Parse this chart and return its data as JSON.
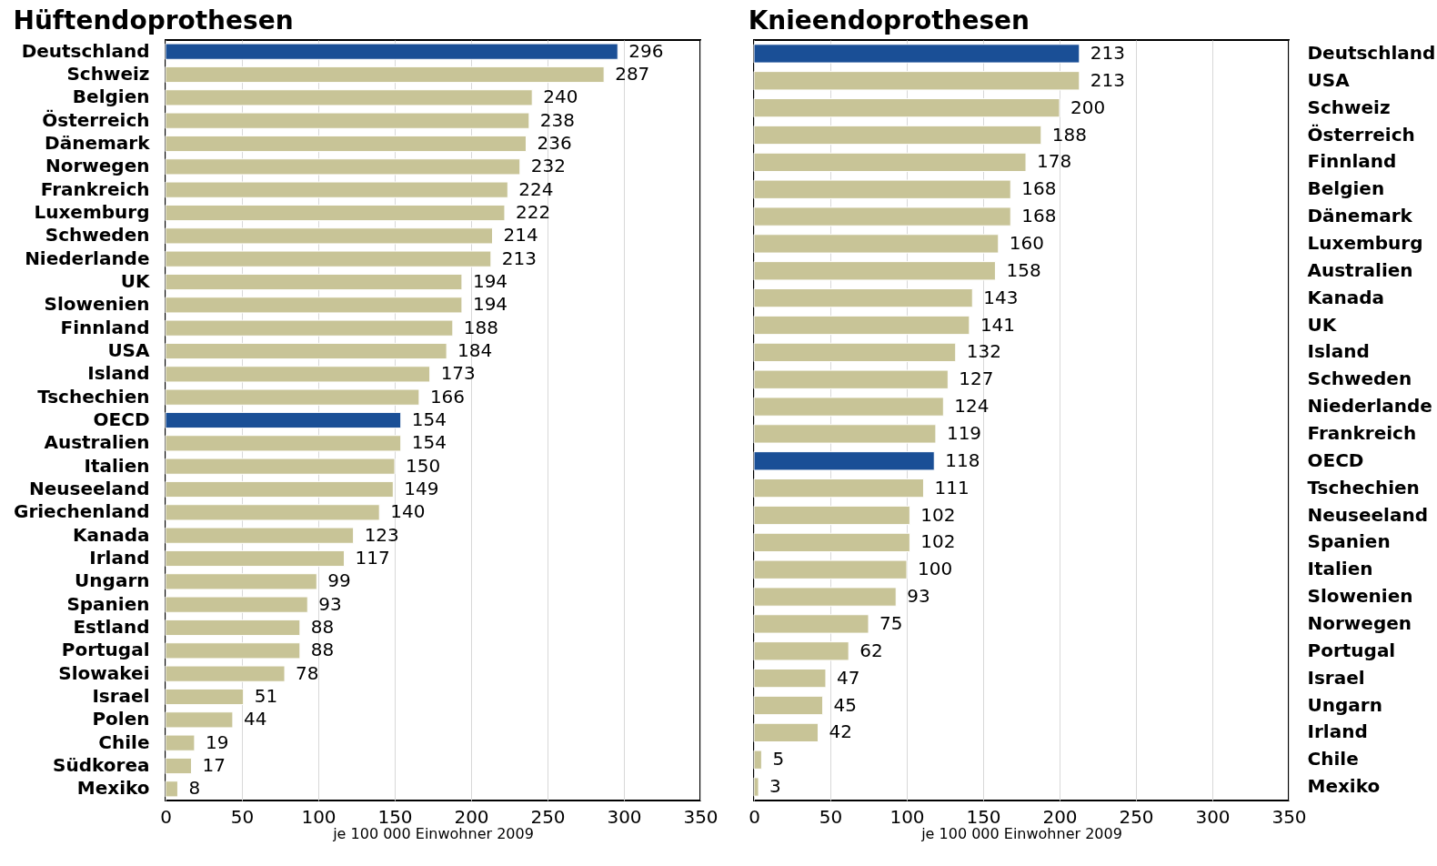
{
  "chart_data": [
    {
      "type": "bar",
      "orientation": "horizontal",
      "title": "Hüftendoprothesen",
      "xlabel": "je 100 000 Einwohner 2009",
      "categories": [
        "Deutschland",
        "Schweiz",
        "Belgien",
        "Österreich",
        "Dänemark",
        "Norwegen",
        "Frankreich",
        "Luxemburg",
        "Schweden",
        "Niederlande",
        "UK",
        "Slowenien",
        "Finnland",
        "USA",
        "Island",
        "Tschechien",
        "OECD",
        "Australien",
        "Italien",
        "Neuseeland",
        "Griechenland",
        "Kanada",
        "Irland",
        "Ungarn",
        "Spanien",
        "Estland",
        "Portugal",
        "Slowakei",
        "Israel",
        "Polen",
        "Chile",
        "Südkorea",
        "Mexiko"
      ],
      "values": [
        296,
        287,
        240,
        238,
        236,
        232,
        224,
        222,
        214,
        213,
        194,
        194,
        188,
        184,
        173,
        166,
        154,
        154,
        150,
        149,
        140,
        123,
        117,
        99,
        93,
        88,
        88,
        78,
        51,
        44,
        19,
        17,
        8
      ],
      "colors": [
        "#1a4f96",
        "#c8c497",
        "#c8c497",
        "#c8c497",
        "#c8c497",
        "#c8c497",
        "#c8c497",
        "#c8c497",
        "#c8c497",
        "#c8c497",
        "#c8c497",
        "#c8c497",
        "#c8c497",
        "#c8c497",
        "#c8c497",
        "#c8c497",
        "#1a4f96",
        "#c8c497",
        "#c8c497",
        "#c8c497",
        "#c8c497",
        "#c8c497",
        "#c8c497",
        "#c8c497",
        "#c8c497",
        "#c8c497",
        "#c8c497",
        "#c8c497",
        "#c8c497",
        "#c8c497",
        "#c8c497",
        "#c8c497",
        "#c8c497"
      ],
      "xlim": [
        0,
        350
      ],
      "xticks": [
        0,
        50,
        100,
        150,
        200,
        250,
        300,
        350
      ],
      "grid": "x",
      "data_labels": true
    },
    {
      "type": "bar",
      "orientation": "horizontal",
      "title": "Knieendoprothesen",
      "xlabel": "je 100 000 Einwohner 2009",
      "categories": [
        "Deutschland",
        "USA",
        "Schweiz",
        "Österreich",
        "Finnland",
        "Belgien",
        "Dänemark",
        "Luxemburg",
        "Australien",
        "Kanada",
        "UK",
        "Island",
        "Schweden",
        "Niederlande",
        "Frankreich",
        "OECD",
        "Tschechien",
        "Neuseeland",
        "Spanien",
        "Italien",
        "Slowenien",
        "Norwegen",
        "Portugal",
        "Israel",
        "Ungarn",
        "Irland",
        "Chile",
        "Mexiko"
      ],
      "values": [
        213,
        213,
        200,
        188,
        178,
        168,
        168,
        160,
        158,
        143,
        141,
        132,
        127,
        124,
        119,
        118,
        111,
        102,
        102,
        100,
        93,
        75,
        62,
        47,
        45,
        42,
        5,
        3
      ],
      "colors": [
        "#1a4f96",
        "#c8c497",
        "#c8c497",
        "#c8c497",
        "#c8c497",
        "#c8c497",
        "#c8c497",
        "#c8c497",
        "#c8c497",
        "#c8c497",
        "#c8c497",
        "#c8c497",
        "#c8c497",
        "#c8c497",
        "#c8c497",
        "#1a4f96",
        "#c8c497",
        "#c8c497",
        "#c8c497",
        "#c8c497",
        "#c8c497",
        "#c8c497",
        "#c8c497",
        "#c8c497",
        "#c8c497",
        "#c8c497",
        "#c8c497",
        "#c8c497"
      ],
      "xlim": [
        0,
        350
      ],
      "xticks": [
        0,
        50,
        100,
        150,
        200,
        250,
        300,
        350
      ],
      "grid": "x",
      "data_labels": true
    }
  ]
}
